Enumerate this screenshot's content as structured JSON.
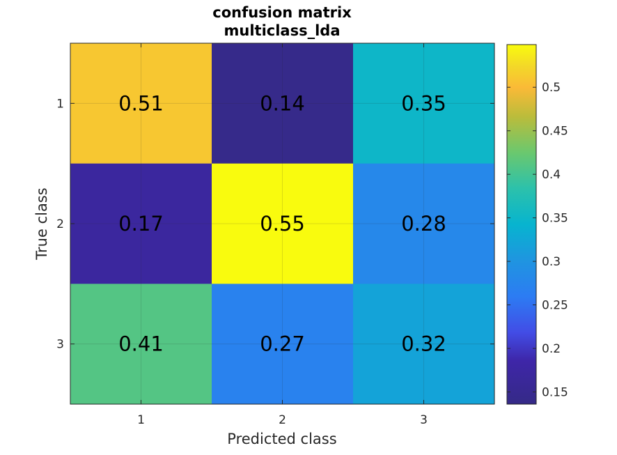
{
  "chart_data": {
    "type": "heatmap",
    "title": [
      "confusion matrix",
      "multiclass_lda"
    ],
    "xlabel": "Predicted class",
    "ylabel": "True class",
    "x_categories": [
      "1",
      "2",
      "3"
    ],
    "y_categories": [
      "1",
      "2",
      "3"
    ],
    "values": [
      [
        0.51,
        0.14,
        0.35
      ],
      [
        0.17,
        0.55,
        0.28
      ],
      [
        0.41,
        0.27,
        0.32
      ]
    ],
    "cell_labels": [
      [
        "0.51",
        "0.14",
        "0.35"
      ],
      [
        "0.17",
        "0.55",
        "0.28"
      ],
      [
        "0.41",
        "0.27",
        "0.32"
      ]
    ],
    "colormap": "parula",
    "colorbar": {
      "range": [
        0.136,
        0.549
      ],
      "ticks": [
        0.15,
        0.2,
        0.25,
        0.3,
        0.35,
        0.4,
        0.45,
        0.5
      ],
      "tick_labels": [
        "0.15",
        "0.2",
        "0.25",
        "0.3",
        "0.35",
        "0.4",
        "0.45",
        "0.5"
      ]
    },
    "grid": true,
    "legend": "none"
  }
}
